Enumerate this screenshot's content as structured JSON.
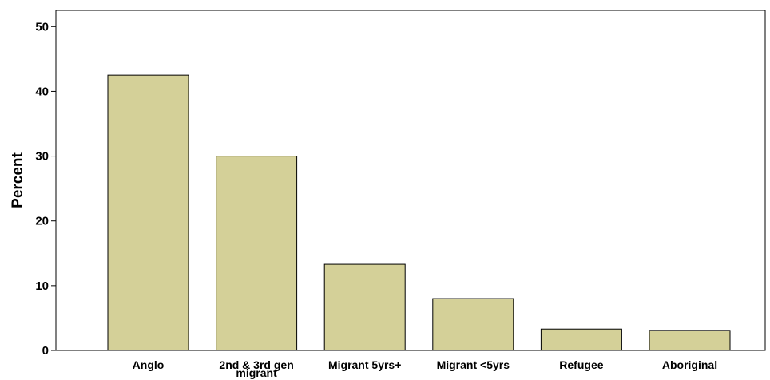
{
  "chart_data": {
    "type": "bar",
    "categories": [
      [
        "Anglo"
      ],
      [
        "2nd & 3rd gen",
        "migrant"
      ],
      [
        "Migrant 5yrs+"
      ],
      [
        "Migrant <5yrs"
      ],
      [
        "Refugee"
      ],
      [
        "Aboriginal"
      ]
    ],
    "values": [
      42.5,
      30.0,
      13.3,
      8.0,
      3.3,
      3.1
    ],
    "ylabel": "Percent",
    "xlabel": "",
    "ylim": [
      0,
      52.5
    ],
    "yticks": [
      0,
      10,
      20,
      30,
      40,
      50
    ],
    "grid": false,
    "colors": {
      "bar_fill": "#d4d098",
      "bar_stroke": "#000000",
      "axis": "#000000"
    }
  }
}
